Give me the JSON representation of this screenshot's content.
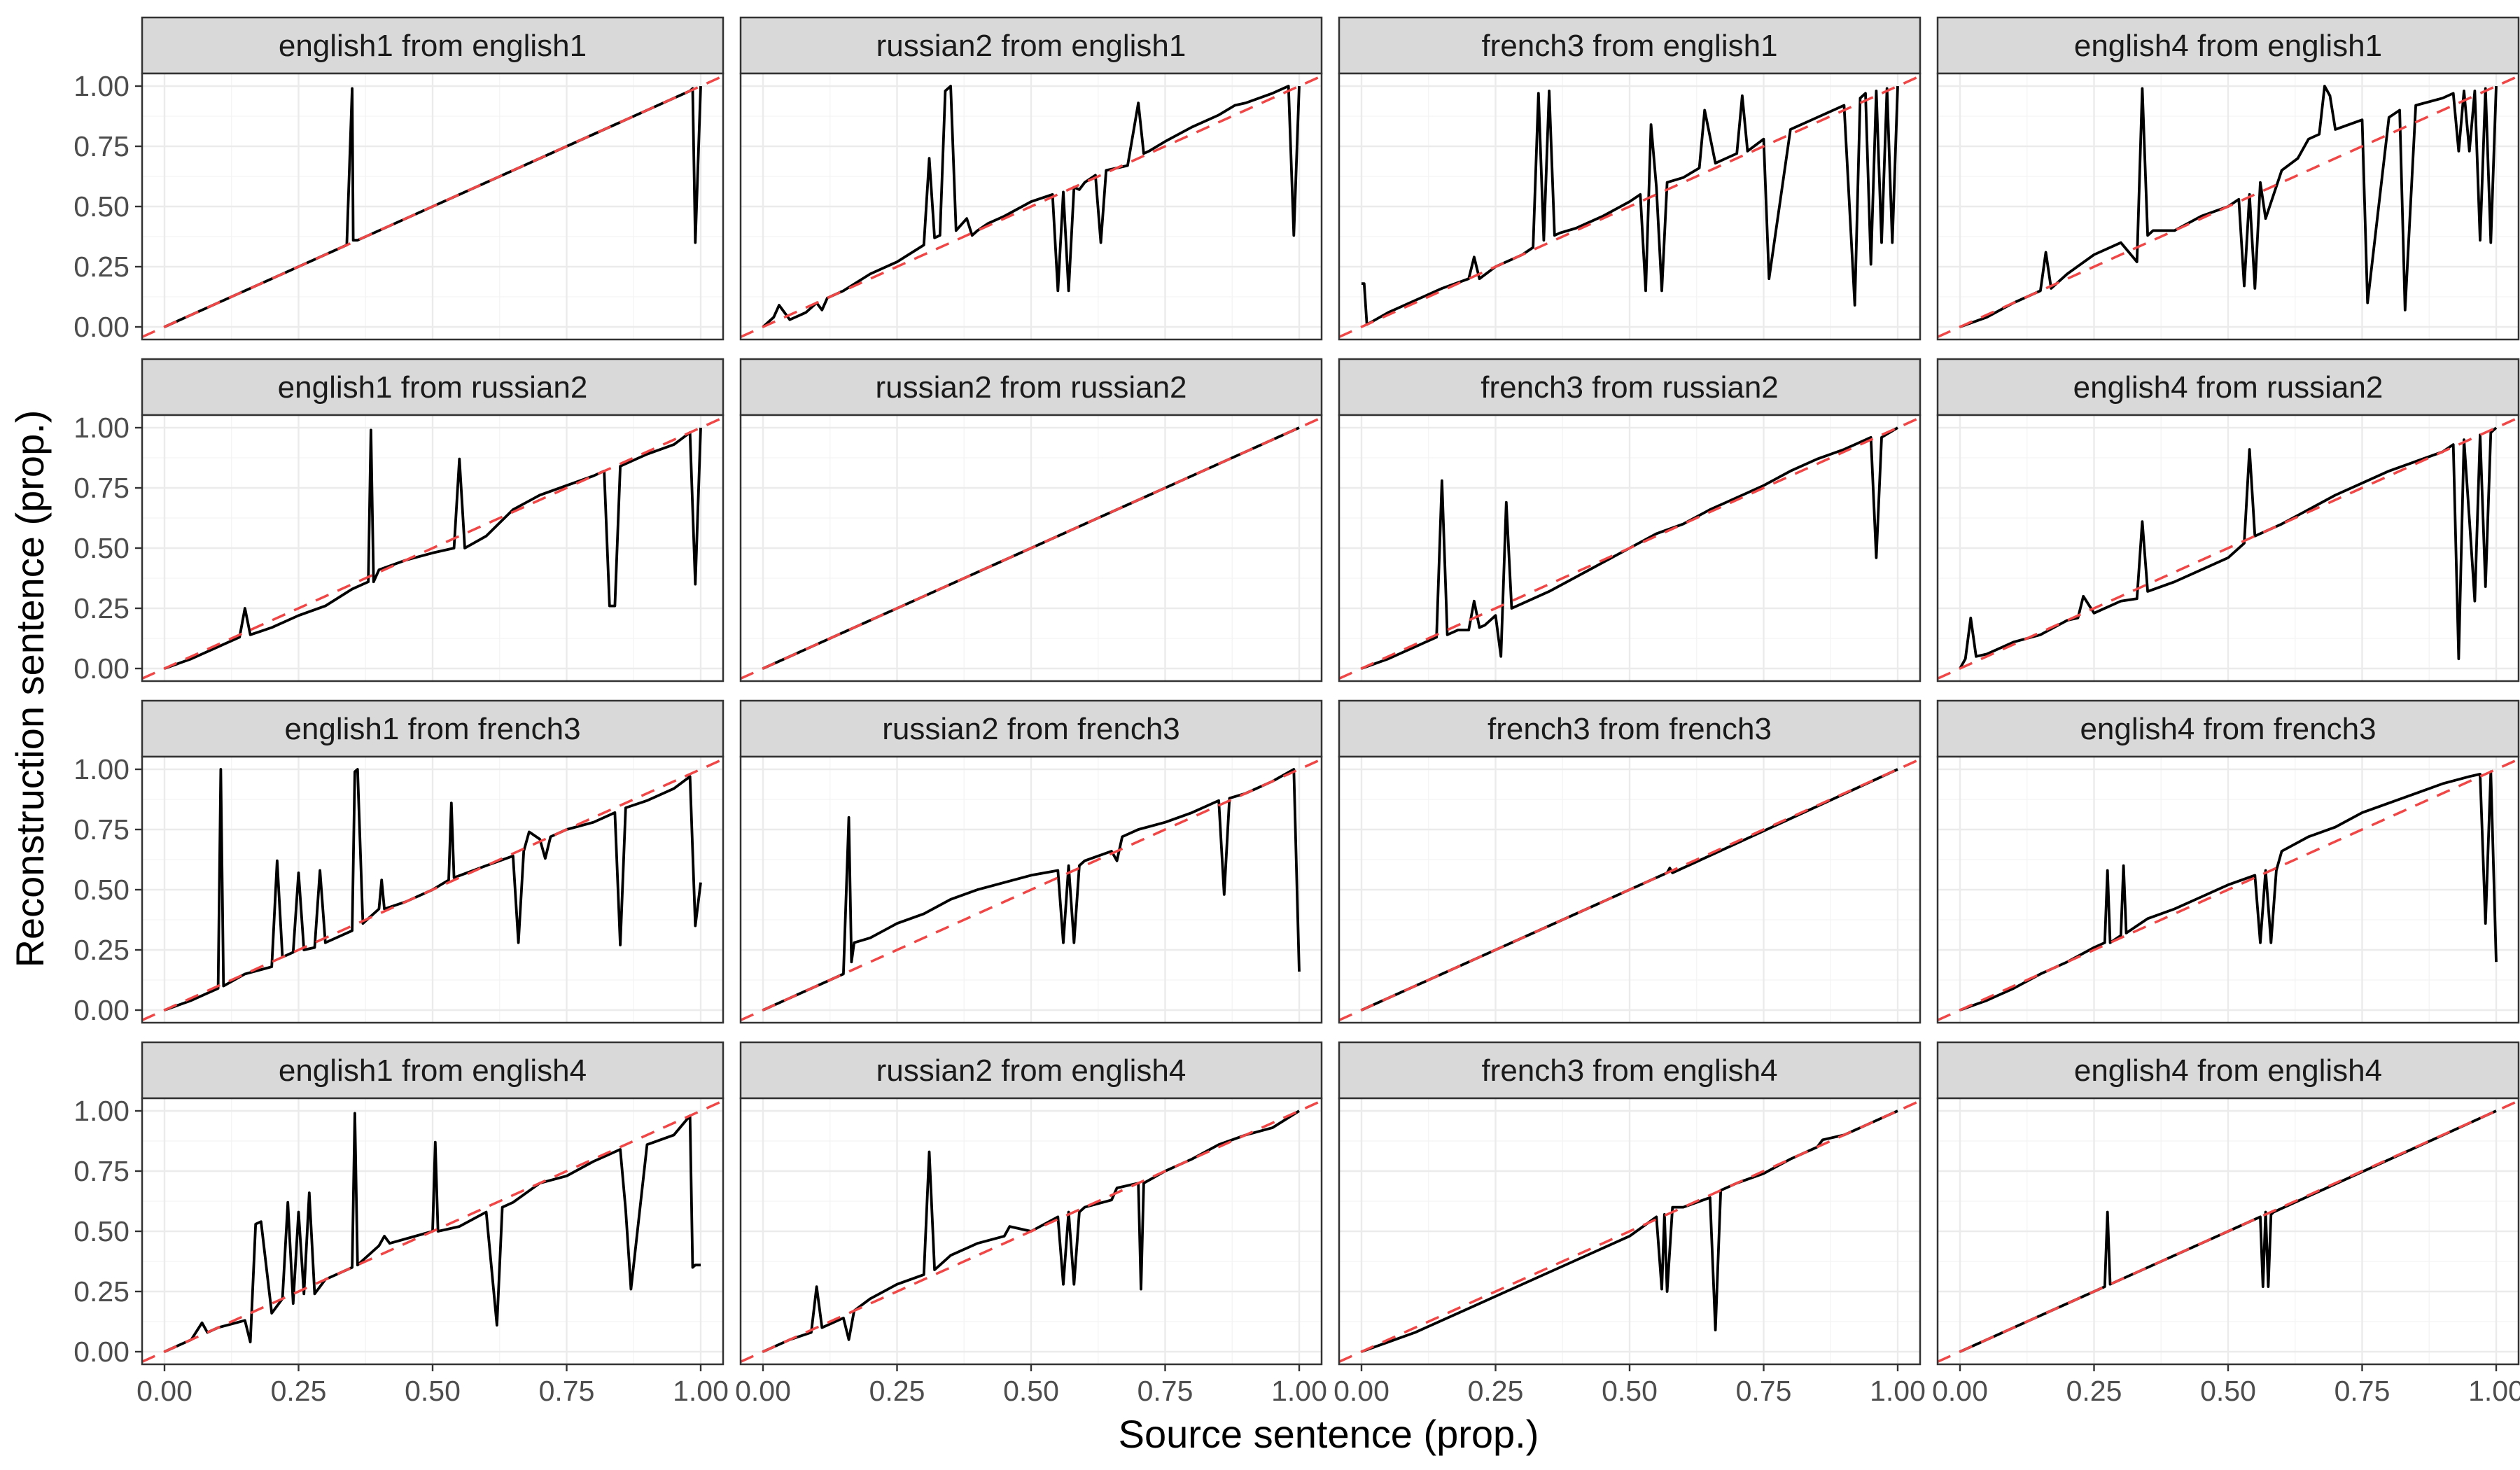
{
  "chart_data": {
    "type": "line",
    "layout": "facet-grid 4x4",
    "xlabel": "Source sentence (prop.)",
    "ylabel": "Reconstruction sentence (prop.)",
    "xlim": [
      0,
      1
    ],
    "ylim": [
      0,
      1
    ],
    "xticks": [
      "0.00",
      "0.25",
      "0.50",
      "0.75",
      "1.00"
    ],
    "yticks": [
      "0.00",
      "0.25",
      "0.50",
      "0.75",
      "1.00"
    ],
    "grid": true,
    "colors": {
      "series": "#000000",
      "reference": "#f04646",
      "strip": "#d9d9d9"
    },
    "reference_line": "dashed red y = x",
    "panels": [
      {
        "title": "english1 from english1",
        "x": [
          0,
          0.34,
          0.35,
          0.352,
          0.36,
          0.98,
          0.985,
          0.99,
          1
        ],
        "y": [
          0,
          0.34,
          0.99,
          0.36,
          0.36,
          0.98,
          0.99,
          0.35,
          1.0
        ]
      },
      {
        "title": "russian2 from english1",
        "x": [
          0,
          0.02,
          0.03,
          0.05,
          0.08,
          0.1,
          0.11,
          0.12,
          0.15,
          0.2,
          0.25,
          0.3,
          0.31,
          0.32,
          0.33,
          0.34,
          0.35,
          0.36,
          0.38,
          0.39,
          0.4,
          0.42,
          0.45,
          0.5,
          0.54,
          0.55,
          0.56,
          0.57,
          0.58,
          0.59,
          0.6,
          0.62,
          0.63,
          0.64,
          0.66,
          0.68,
          0.7,
          0.71,
          0.72,
          0.75,
          0.8,
          0.85,
          0.88,
          0.9,
          0.95,
          0.98,
          0.99,
          1
        ],
        "y": [
          0,
          0.04,
          0.09,
          0.03,
          0.06,
          0.1,
          0.07,
          0.12,
          0.15,
          0.22,
          0.27,
          0.34,
          0.7,
          0.37,
          0.38,
          0.98,
          1.0,
          0.4,
          0.45,
          0.38,
          0.4,
          0.43,
          0.46,
          0.52,
          0.55,
          0.15,
          0.56,
          0.15,
          0.58,
          0.57,
          0.6,
          0.63,
          0.35,
          0.65,
          0.66,
          0.67,
          0.93,
          0.72,
          0.73,
          0.77,
          0.83,
          0.88,
          0.92,
          0.93,
          0.97,
          1.0,
          0.38,
          1.0
        ]
      },
      {
        "title": "french3 from english1",
        "x": [
          0,
          0.005,
          0.01,
          0.05,
          0.1,
          0.15,
          0.2,
          0.21,
          0.22,
          0.25,
          0.3,
          0.32,
          0.33,
          0.34,
          0.35,
          0.36,
          0.37,
          0.4,
          0.45,
          0.5,
          0.52,
          0.53,
          0.54,
          0.55,
          0.56,
          0.57,
          0.6,
          0.63,
          0.64,
          0.66,
          0.68,
          0.7,
          0.71,
          0.72,
          0.75,
          0.76,
          0.8,
          0.85,
          0.9,
          0.92,
          0.93,
          0.94,
          0.95,
          0.96,
          0.97,
          0.98,
          0.99,
          1
        ],
        "y": [
          0.18,
          0.18,
          0.01,
          0.06,
          0.11,
          0.16,
          0.2,
          0.29,
          0.2,
          0.25,
          0.3,
          0.33,
          0.97,
          0.36,
          0.98,
          0.38,
          0.39,
          0.41,
          0.46,
          0.52,
          0.55,
          0.15,
          0.84,
          0.58,
          0.15,
          0.6,
          0.62,
          0.66,
          0.9,
          0.68,
          0.7,
          0.72,
          0.96,
          0.73,
          0.78,
          0.2,
          0.82,
          0.87,
          0.92,
          0.09,
          0.95,
          0.97,
          0.26,
          0.98,
          0.35,
          0.99,
          0.35,
          1.0
        ]
      },
      {
        "title": "english4 from english1",
        "x": [
          0,
          0.05,
          0.1,
          0.15,
          0.16,
          0.17,
          0.2,
          0.25,
          0.3,
          0.33,
          0.34,
          0.35,
          0.36,
          0.4,
          0.45,
          0.5,
          0.52,
          0.53,
          0.54,
          0.55,
          0.56,
          0.57,
          0.6,
          0.63,
          0.65,
          0.67,
          0.68,
          0.69,
          0.7,
          0.75,
          0.76,
          0.8,
          0.82,
          0.83,
          0.85,
          0.9,
          0.92,
          0.93,
          0.94,
          0.95,
          0.96,
          0.97,
          0.98,
          0.99,
          1
        ],
        "y": [
          0,
          0.04,
          0.1,
          0.15,
          0.31,
          0.16,
          0.22,
          0.3,
          0.35,
          0.27,
          0.99,
          0.38,
          0.4,
          0.4,
          0.46,
          0.5,
          0.53,
          0.17,
          0.55,
          0.16,
          0.6,
          0.45,
          0.65,
          0.7,
          0.78,
          0.8,
          1.0,
          0.96,
          0.82,
          0.86,
          0.1,
          0.87,
          0.9,
          0.07,
          0.92,
          0.95,
          0.97,
          0.73,
          0.98,
          0.73,
          0.98,
          0.36,
          0.99,
          0.35,
          1.0
        ]
      },
      {
        "title": "english1 from russian2",
        "x": [
          0,
          0.05,
          0.1,
          0.14,
          0.15,
          0.16,
          0.2,
          0.25,
          0.3,
          0.35,
          0.38,
          0.385,
          0.39,
          0.4,
          0.45,
          0.5,
          0.54,
          0.55,
          0.56,
          0.6,
          0.65,
          0.7,
          0.75,
          0.8,
          0.82,
          0.83,
          0.84,
          0.85,
          0.9,
          0.95,
          0.98,
          0.99,
          1
        ],
        "y": [
          0,
          0.04,
          0.09,
          0.13,
          0.25,
          0.14,
          0.17,
          0.22,
          0.26,
          0.33,
          0.36,
          0.99,
          0.36,
          0.41,
          0.45,
          0.48,
          0.5,
          0.87,
          0.5,
          0.55,
          0.66,
          0.72,
          0.76,
          0.8,
          0.82,
          0.26,
          0.26,
          0.84,
          0.89,
          0.93,
          0.98,
          0.35,
          1.0
        ]
      },
      {
        "title": "russian2 from russian2",
        "x": [
          0,
          1
        ],
        "y": [
          0,
          1
        ]
      },
      {
        "title": "french3 from russian2",
        "x": [
          0,
          0.05,
          0.1,
          0.14,
          0.15,
          0.16,
          0.18,
          0.2,
          0.21,
          0.22,
          0.23,
          0.25,
          0.26,
          0.27,
          0.28,
          0.3,
          0.35,
          0.4,
          0.45,
          0.5,
          0.55,
          0.6,
          0.65,
          0.7,
          0.75,
          0.8,
          0.85,
          0.9,
          0.95,
          0.96,
          0.97,
          1
        ],
        "y": [
          0,
          0.04,
          0.09,
          0.13,
          0.78,
          0.14,
          0.16,
          0.16,
          0.28,
          0.17,
          0.18,
          0.22,
          0.05,
          0.69,
          0.25,
          0.27,
          0.32,
          0.38,
          0.44,
          0.5,
          0.56,
          0.6,
          0.66,
          0.71,
          0.76,
          0.82,
          0.87,
          0.91,
          0.96,
          0.46,
          0.96,
          1.0
        ]
      },
      {
        "title": "english4 from russian2",
        "x": [
          0,
          0.01,
          0.02,
          0.03,
          0.05,
          0.1,
          0.15,
          0.2,
          0.22,
          0.23,
          0.25,
          0.3,
          0.33,
          0.34,
          0.35,
          0.4,
          0.45,
          0.5,
          0.53,
          0.54,
          0.55,
          0.6,
          0.65,
          0.7,
          0.75,
          0.8,
          0.85,
          0.9,
          0.92,
          0.93,
          0.94,
          0.95,
          0.96,
          0.97,
          0.98,
          0.99,
          1
        ],
        "y": [
          0,
          0.04,
          0.21,
          0.05,
          0.06,
          0.11,
          0.14,
          0.2,
          0.21,
          0.3,
          0.23,
          0.28,
          0.29,
          0.61,
          0.32,
          0.36,
          0.41,
          0.46,
          0.52,
          0.91,
          0.55,
          0.6,
          0.66,
          0.72,
          0.77,
          0.82,
          0.86,
          0.9,
          0.93,
          0.04,
          0.95,
          0.62,
          0.28,
          0.97,
          0.34,
          0.98,
          1.0
        ]
      },
      {
        "title": "english1 from french3",
        "x": [
          0,
          0.05,
          0.1,
          0.105,
          0.11,
          0.15,
          0.2,
          0.21,
          0.22,
          0.24,
          0.25,
          0.26,
          0.28,
          0.29,
          0.3,
          0.35,
          0.355,
          0.36,
          0.37,
          0.4,
          0.405,
          0.41,
          0.45,
          0.5,
          0.53,
          0.535,
          0.54,
          0.6,
          0.65,
          0.66,
          0.67,
          0.68,
          0.7,
          0.71,
          0.72,
          0.75,
          0.8,
          0.84,
          0.85,
          0.86,
          0.9,
          0.95,
          0.98,
          0.99,
          1
        ],
        "y": [
          0,
          0.04,
          0.09,
          1.0,
          0.1,
          0.15,
          0.18,
          0.62,
          0.22,
          0.24,
          0.57,
          0.25,
          0.26,
          0.58,
          0.28,
          0.33,
          0.99,
          1.0,
          0.36,
          0.42,
          0.54,
          0.42,
          0.45,
          0.5,
          0.54,
          0.86,
          0.55,
          0.6,
          0.64,
          0.28,
          0.66,
          0.74,
          0.71,
          0.63,
          0.72,
          0.75,
          0.78,
          0.82,
          0.27,
          0.84,
          0.87,
          0.92,
          0.97,
          0.35,
          0.53
        ]
      },
      {
        "title": "russian2 from french3",
        "x": [
          0,
          0.05,
          0.1,
          0.15,
          0.16,
          0.165,
          0.17,
          0.2,
          0.25,
          0.3,
          0.35,
          0.4,
          0.45,
          0.5,
          0.55,
          0.56,
          0.57,
          0.58,
          0.59,
          0.6,
          0.65,
          0.66,
          0.67,
          0.7,
          0.75,
          0.8,
          0.85,
          0.86,
          0.87,
          0.9,
          0.95,
          0.99,
          1
        ],
        "y": [
          0,
          0.05,
          0.1,
          0.15,
          0.8,
          0.2,
          0.28,
          0.3,
          0.36,
          0.4,
          0.46,
          0.5,
          0.53,
          0.56,
          0.58,
          0.28,
          0.6,
          0.28,
          0.6,
          0.62,
          0.66,
          0.62,
          0.72,
          0.75,
          0.78,
          0.82,
          0.87,
          0.48,
          0.88,
          0.9,
          0.95,
          1.0,
          0.16
        ]
      },
      {
        "title": "french3 from french3",
        "x": [
          0,
          0.57,
          0.575,
          0.58,
          1
        ],
        "y": [
          0,
          0.57,
          0.59,
          0.57,
          1.0
        ]
      },
      {
        "title": "english4 from french3",
        "x": [
          0,
          0.05,
          0.1,
          0.15,
          0.2,
          0.25,
          0.27,
          0.275,
          0.28,
          0.3,
          0.305,
          0.31,
          0.35,
          0.4,
          0.45,
          0.5,
          0.55,
          0.56,
          0.57,
          0.58,
          0.59,
          0.6,
          0.65,
          0.7,
          0.75,
          0.8,
          0.85,
          0.9,
          0.95,
          0.97,
          0.98,
          0.99,
          1
        ],
        "y": [
          0,
          0.04,
          0.09,
          0.15,
          0.2,
          0.26,
          0.28,
          0.58,
          0.28,
          0.31,
          0.6,
          0.32,
          0.38,
          0.42,
          0.47,
          0.52,
          0.56,
          0.28,
          0.58,
          0.28,
          0.58,
          0.66,
          0.72,
          0.76,
          0.82,
          0.86,
          0.9,
          0.94,
          0.97,
          0.98,
          0.36,
          0.99,
          0.2
        ]
      },
      {
        "title": "english1 from english4",
        "x": [
          0,
          0.05,
          0.07,
          0.08,
          0.1,
          0.15,
          0.16,
          0.17,
          0.18,
          0.2,
          0.22,
          0.23,
          0.24,
          0.25,
          0.26,
          0.27,
          0.28,
          0.3,
          0.35,
          0.355,
          0.36,
          0.4,
          0.41,
          0.42,
          0.5,
          0.505,
          0.51,
          0.55,
          0.6,
          0.62,
          0.63,
          0.65,
          0.7,
          0.75,
          0.8,
          0.85,
          0.86,
          0.87,
          0.9,
          0.95,
          0.98,
          0.985,
          0.99,
          1
        ],
        "y": [
          0,
          0.05,
          0.12,
          0.08,
          0.1,
          0.13,
          0.04,
          0.53,
          0.54,
          0.16,
          0.22,
          0.62,
          0.2,
          0.58,
          0.24,
          0.66,
          0.24,
          0.3,
          0.35,
          0.99,
          0.36,
          0.44,
          0.48,
          0.45,
          0.5,
          0.87,
          0.5,
          0.52,
          0.58,
          0.11,
          0.6,
          0.62,
          0.7,
          0.73,
          0.79,
          0.84,
          0.59,
          0.26,
          0.86,
          0.9,
          0.98,
          0.35,
          0.36,
          0.36
        ]
      },
      {
        "title": "russian2 from english4",
        "x": [
          0,
          0.05,
          0.09,
          0.1,
          0.11,
          0.15,
          0.16,
          0.17,
          0.2,
          0.25,
          0.3,
          0.31,
          0.32,
          0.33,
          0.35,
          0.4,
          0.45,
          0.46,
          0.5,
          0.55,
          0.56,
          0.57,
          0.58,
          0.59,
          0.6,
          0.65,
          0.66,
          0.7,
          0.705,
          0.71,
          0.75,
          0.8,
          0.85,
          0.9,
          0.95,
          1
        ],
        "y": [
          0,
          0.05,
          0.08,
          0.27,
          0.1,
          0.14,
          0.05,
          0.17,
          0.22,
          0.28,
          0.32,
          0.83,
          0.34,
          0.36,
          0.4,
          0.45,
          0.48,
          0.52,
          0.5,
          0.56,
          0.28,
          0.58,
          0.28,
          0.58,
          0.6,
          0.63,
          0.68,
          0.7,
          0.26,
          0.7,
          0.75,
          0.8,
          0.86,
          0.9,
          0.93,
          1.0
        ]
      },
      {
        "title": "french3 from english4",
        "x": [
          0,
          0.05,
          0.1,
          0.2,
          0.3,
          0.4,
          0.5,
          0.55,
          0.56,
          0.565,
          0.57,
          0.58,
          0.6,
          0.65,
          0.66,
          0.67,
          0.7,
          0.75,
          0.8,
          0.85,
          0.86,
          0.9,
          0.95,
          1
        ],
        "y": [
          0,
          0.04,
          0.08,
          0.18,
          0.28,
          0.38,
          0.48,
          0.56,
          0.26,
          0.57,
          0.25,
          0.6,
          0.6,
          0.64,
          0.09,
          0.67,
          0.7,
          0.74,
          0.8,
          0.85,
          0.88,
          0.9,
          0.95,
          1.0
        ]
      },
      {
        "title": "english4 from english4",
        "x": [
          0,
          0.27,
          0.275,
          0.28,
          0.56,
          0.565,
          0.57,
          0.575,
          0.58,
          0.585,
          1
        ],
        "y": [
          0,
          0.27,
          0.58,
          0.28,
          0.56,
          0.27,
          0.58,
          0.27,
          0.57,
          0.58,
          1.0
        ]
      }
    ]
  }
}
